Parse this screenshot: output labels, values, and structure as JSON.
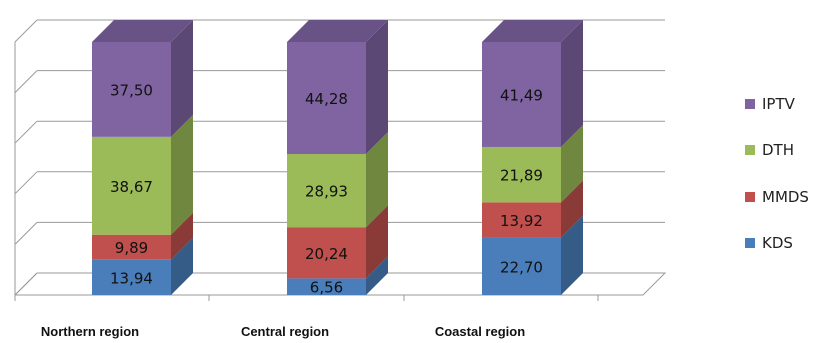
{
  "chart_data": {
    "type": "bar",
    "stacked": true,
    "three_d": true,
    "categories": [
      "Northern region",
      "Central region",
      "Coastal region"
    ],
    "series": [
      {
        "name": "KDS",
        "color": "#4a7ebb",
        "values": [
          13.94,
          6.56,
          22.7
        ],
        "labels": [
          "13,94",
          "6,56",
          "22,70"
        ]
      },
      {
        "name": "MMDS",
        "color": "#c0504d",
        "values": [
          9.89,
          20.24,
          13.92
        ],
        "labels": [
          "9,89",
          "20,24",
          "13,92"
        ]
      },
      {
        "name": "DTH",
        "color": "#9bbb59",
        "values": [
          38.67,
          28.93,
          21.89
        ],
        "labels": [
          "38,67",
          "28,93",
          "21,89"
        ]
      },
      {
        "name": "IPTV",
        "color": "#8064a2",
        "values": [
          37.5,
          44.28,
          41.49
        ],
        "labels": [
          "37,50",
          "44,28",
          "41,49"
        ]
      }
    ],
    "ylim": [
      0,
      100
    ],
    "grid": true,
    "legend_position": "right",
    "legend_order": [
      "IPTV",
      "DTH",
      "MMDS",
      "KDS"
    ]
  }
}
